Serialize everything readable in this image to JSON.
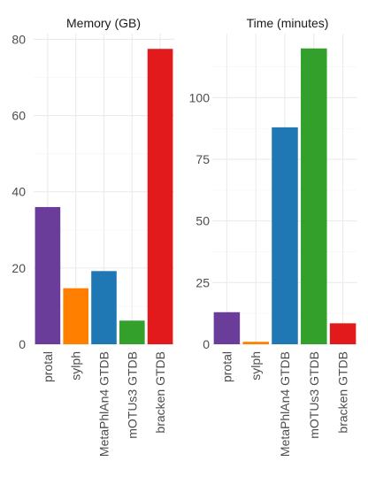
{
  "chart_data": [
    {
      "type": "bar",
      "title": "Memory (GB)",
      "categories": [
        "protal",
        "sylph",
        "MetaPhlAn4 GTDB",
        "mOTUs3 GTDB",
        "bracken GTDB"
      ],
      "values": [
        36,
        14.7,
        19.2,
        6.2,
        77.5
      ],
      "colors": [
        "#6A3D9A",
        "#FF7F00",
        "#1F78B4",
        "#33A02C",
        "#E31A1C"
      ],
      "ylim": [
        0,
        81.5
      ],
      "yticks": [
        0,
        20,
        40,
        60,
        80
      ],
      "grid": true
    },
    {
      "type": "bar",
      "title": "Time (minutes)",
      "categories": [
        "protal",
        "sylph",
        "MetaPhlAn4 GTDB",
        "mOTUs3 GTDB",
        "bracken GTDB"
      ],
      "values": [
        13,
        1,
        88,
        120,
        8.5
      ],
      "colors": [
        "#6A3D9A",
        "#FF7F00",
        "#1F78B4",
        "#33A02C",
        "#E31A1C"
      ],
      "ylim": [
        0,
        126
      ],
      "yticks": [
        0,
        25,
        50,
        75,
        100
      ],
      "grid": true
    }
  ]
}
